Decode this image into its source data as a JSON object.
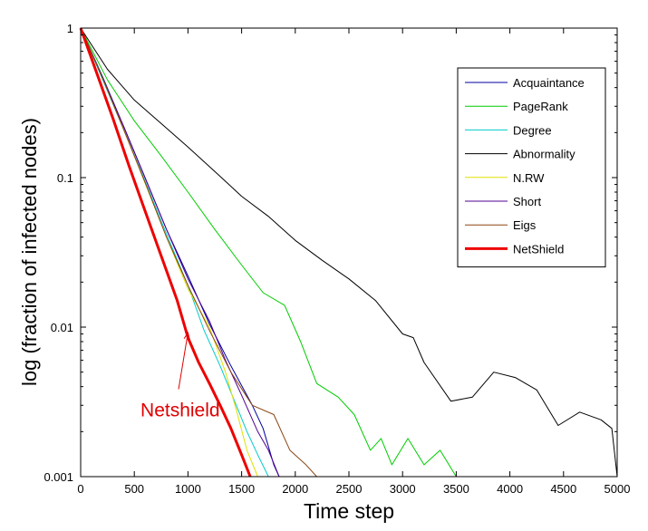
{
  "chart_data": {
    "type": "line",
    "xlabel": "Time step",
    "ylabel": "log (fraction of infected nodes)",
    "xlim": [
      0,
      5000
    ],
    "ylim": [
      0.001,
      1
    ],
    "yscale": "log",
    "grid": false,
    "legend_position": "top-right",
    "x_ticks": [
      0,
      500,
      1000,
      1500,
      2000,
      2500,
      3000,
      3500,
      4000,
      4500,
      5000
    ],
    "x_tick_labels": [
      "0",
      "500",
      "1000",
      "1500",
      "2000",
      "2500",
      "3000",
      "3500",
      "4000",
      "4500",
      "5000"
    ],
    "y_ticks": [
      1,
      0.1,
      0.01,
      0.001
    ],
    "y_tick_labels": [
      "1",
      "0.1",
      "0.01",
      "0.001"
    ],
    "annotation": {
      "text": "Netshield",
      "color": "#e00000",
      "x": 980,
      "y": 0.0026,
      "arrow_to_x": 1000,
      "arrow_to_y": 0.0092
    },
    "series": [
      {
        "name": "Acquaintance",
        "color": "#0000a0",
        "width": 1,
        "points": [
          [
            0,
            1
          ],
          [
            200,
            0.48
          ],
          [
            400,
            0.22
          ],
          [
            600,
            0.1
          ],
          [
            800,
            0.045
          ],
          [
            1000,
            0.022
          ],
          [
            1200,
            0.0105
          ],
          [
            1400,
            0.0055
          ],
          [
            1600,
            0.003
          ],
          [
            1700,
            0.0021
          ],
          [
            1800,
            0.0012
          ],
          [
            1850,
            0.001
          ]
        ]
      },
      {
        "name": "PageRank",
        "color": "#00cc00",
        "width": 1,
        "points": [
          [
            0,
            1
          ],
          [
            250,
            0.45
          ],
          [
            500,
            0.24
          ],
          [
            750,
            0.14
          ],
          [
            1000,
            0.08
          ],
          [
            1250,
            0.045
          ],
          [
            1500,
            0.026
          ],
          [
            1700,
            0.017
          ],
          [
            1900,
            0.014
          ],
          [
            2050,
            0.008
          ],
          [
            2200,
            0.0042
          ],
          [
            2400,
            0.0034
          ],
          [
            2550,
            0.0026
          ],
          [
            2700,
            0.0015
          ],
          [
            2800,
            0.0018
          ],
          [
            2900,
            0.0012
          ],
          [
            3050,
            0.0018
          ],
          [
            3200,
            0.0012
          ],
          [
            3350,
            0.0015
          ],
          [
            3500,
            0.001
          ]
        ]
      },
      {
        "name": "Degree",
        "color": "#00cccc",
        "width": 1,
        "points": [
          [
            0,
            1
          ],
          [
            200,
            0.46
          ],
          [
            400,
            0.21
          ],
          [
            600,
            0.095
          ],
          [
            800,
            0.042
          ],
          [
            1000,
            0.019
          ],
          [
            1150,
            0.0095
          ],
          [
            1300,
            0.0055
          ],
          [
            1450,
            0.003
          ],
          [
            1550,
            0.002
          ],
          [
            1650,
            0.0014
          ],
          [
            1750,
            0.001
          ]
        ]
      },
      {
        "name": "Abnormality",
        "color": "#000000",
        "width": 1,
        "points": [
          [
            0,
            1
          ],
          [
            250,
            0.53
          ],
          [
            500,
            0.33
          ],
          [
            750,
            0.23
          ],
          [
            1000,
            0.16
          ],
          [
            1250,
            0.11
          ],
          [
            1500,
            0.075
          ],
          [
            1750,
            0.055
          ],
          [
            2000,
            0.038
          ],
          [
            2250,
            0.028
          ],
          [
            2500,
            0.021
          ],
          [
            2750,
            0.015
          ],
          [
            3000,
            0.009
          ],
          [
            3100,
            0.0085
          ],
          [
            3200,
            0.0058
          ],
          [
            3450,
            0.0032
          ],
          [
            3650,
            0.0034
          ],
          [
            3850,
            0.005
          ],
          [
            4050,
            0.0046
          ],
          [
            4250,
            0.0038
          ],
          [
            4450,
            0.0022
          ],
          [
            4650,
            0.0027
          ],
          [
            4850,
            0.0024
          ],
          [
            4950,
            0.0021
          ],
          [
            5000,
            0.001
          ]
        ]
      },
      {
        "name": "N.RW",
        "color": "#e0e000",
        "width": 1,
        "points": [
          [
            0,
            1
          ],
          [
            200,
            0.47
          ],
          [
            400,
            0.21
          ],
          [
            600,
            0.092
          ],
          [
            800,
            0.04
          ],
          [
            1000,
            0.018
          ],
          [
            1200,
            0.01
          ],
          [
            1350,
            0.005
          ],
          [
            1450,
            0.0028
          ],
          [
            1550,
            0.0015
          ],
          [
            1650,
            0.001
          ]
        ]
      },
      {
        "name": "Short",
        "color": "#500090",
        "width": 1,
        "points": [
          [
            0,
            1
          ],
          [
            200,
            0.47
          ],
          [
            400,
            0.22
          ],
          [
            600,
            0.1
          ],
          [
            800,
            0.045
          ],
          [
            1000,
            0.021
          ],
          [
            1200,
            0.011
          ],
          [
            1350,
            0.006
          ],
          [
            1500,
            0.0035
          ],
          [
            1650,
            0.002
          ],
          [
            1750,
            0.0015
          ],
          [
            1850,
            0.001
          ]
        ]
      },
      {
        "name": "Eigs",
        "color": "#8b4513",
        "width": 1,
        "points": [
          [
            0,
            1
          ],
          [
            200,
            0.47
          ],
          [
            400,
            0.21
          ],
          [
            600,
            0.093
          ],
          [
            800,
            0.04
          ],
          [
            1000,
            0.019
          ],
          [
            1200,
            0.0095
          ],
          [
            1400,
            0.005
          ],
          [
            1600,
            0.003
          ],
          [
            1800,
            0.0026
          ],
          [
            1950,
            0.0015
          ],
          [
            2100,
            0.0012
          ],
          [
            2200,
            0.001
          ]
        ]
      },
      {
        "name": "NetShield",
        "color": "#ee0000",
        "width": 3,
        "points": [
          [
            0,
            1
          ],
          [
            150,
            0.5
          ],
          [
            300,
            0.25
          ],
          [
            450,
            0.12
          ],
          [
            600,
            0.06
          ],
          [
            750,
            0.03
          ],
          [
            900,
            0.015
          ],
          [
            1000,
            0.0085
          ],
          [
            1100,
            0.0058
          ],
          [
            1200,
            0.0042
          ],
          [
            1300,
            0.003
          ],
          [
            1400,
            0.0021
          ],
          [
            1500,
            0.0014
          ],
          [
            1580,
            0.001
          ]
        ]
      }
    ]
  }
}
